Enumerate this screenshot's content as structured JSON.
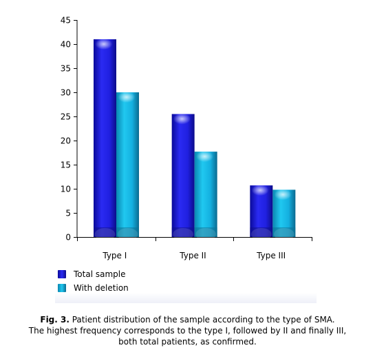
{
  "chart_data": {
    "type": "bar",
    "categories": [
      "Type I",
      "Type II",
      "Type III"
    ],
    "series": [
      {
        "name": "Total sample",
        "values": [
          41,
          25.5,
          10.7
        ],
        "color": "#1a1adf"
      },
      {
        "name": "With deletion",
        "values": [
          30,
          17.7,
          9.8
        ],
        "color": "#16b4e0"
      }
    ],
    "yticks": [
      0,
      5,
      10,
      15,
      20,
      25,
      30,
      35,
      40,
      45
    ],
    "ylim": [
      0,
      45
    ],
    "legend_position": "bottom-left"
  },
  "caption": {
    "label": "Fig. 3.",
    "line1": " Patient distribution of the sample according to the type of SMA.",
    "line2": "The highest frequency corresponds to the type I, followed by II and finally III,",
    "line3": "both total patients, as confirmed."
  }
}
